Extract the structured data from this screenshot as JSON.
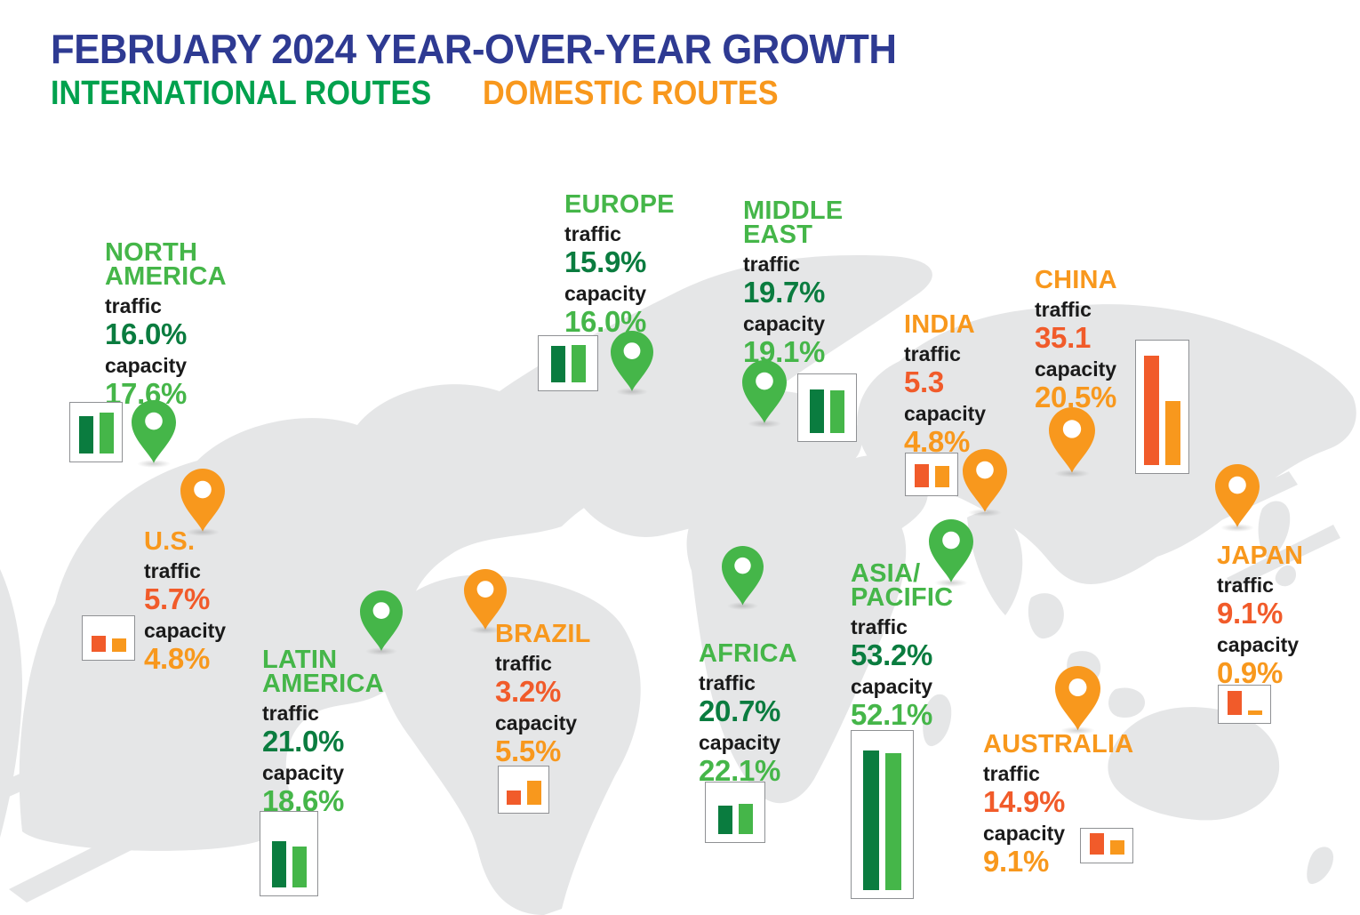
{
  "title": "FEBRUARY 2024 YEAR-OVER-YEAR GROWTH",
  "legend": {
    "international": "INTERNATIONAL ROUTES",
    "domestic": "DOMESTIC ROUTES"
  },
  "labels": {
    "traffic": "traffic",
    "capacity": "capacity"
  },
  "colors": {
    "navy": "#2E3A92",
    "green": "#45B649",
    "green_dark": "#0A7C3F",
    "green_legend": "#00A14D",
    "orange": "#F8981D",
    "orange_red": "#F15B2A",
    "text_black": "#1A1A1A",
    "map_gray": "#E5E6E7",
    "box_border": "#8F9194"
  },
  "regions": [
    {
      "name": "NORTH\nAMERICA",
      "route_type": "international",
      "traffic": "16.0%",
      "capacity": "17.6%",
      "traffic_value": 16.0,
      "capacity_value": 17.6
    },
    {
      "name": "U.S.",
      "route_type": "domestic",
      "traffic": "5.7%",
      "capacity": "4.8%",
      "traffic_value": 5.7,
      "capacity_value": 4.8
    },
    {
      "name": "LATIN\nAMERICA",
      "route_type": "international",
      "traffic": "21.0%",
      "capacity": "18.6%",
      "traffic_value": 21.0,
      "capacity_value": 18.6
    },
    {
      "name": "BRAZIL",
      "route_type": "domestic",
      "traffic": "3.2%",
      "capacity": "5.5%",
      "traffic_value": 3.2,
      "capacity_value": 5.5
    },
    {
      "name": "EUROPE",
      "route_type": "international",
      "traffic": "15.9%",
      "capacity": "16.0%",
      "traffic_value": 15.9,
      "capacity_value": 16.0
    },
    {
      "name": "MIDDLE\nEAST",
      "route_type": "international",
      "traffic": "19.7%",
      "capacity": "19.1%",
      "traffic_value": 19.7,
      "capacity_value": 19.1
    },
    {
      "name": "AFRICA",
      "route_type": "international",
      "traffic": "20.7%",
      "capacity": "22.1%",
      "traffic_value": 20.7,
      "capacity_value": 22.1
    },
    {
      "name": "INDIA",
      "route_type": "domestic",
      "traffic": "5.3",
      "capacity": "4.8%",
      "traffic_value": 5.3,
      "capacity_value": 4.8
    },
    {
      "name": "CHINA",
      "route_type": "domestic",
      "traffic": "35.1",
      "capacity": "20.5%",
      "traffic_value": 35.1,
      "capacity_value": 20.5
    },
    {
      "name": "ASIA/\nPACIFIC",
      "route_type": "international",
      "traffic": "53.2%",
      "capacity": "52.1%",
      "traffic_value": 53.2,
      "capacity_value": 52.1
    },
    {
      "name": "JAPAN",
      "route_type": "domestic",
      "traffic": "9.1%",
      "capacity": "0.9%",
      "traffic_value": 9.1,
      "capacity_value": 0.9
    },
    {
      "name": "AUSTRALIA",
      "route_type": "domestic",
      "traffic": "14.9%",
      "capacity": "9.1%",
      "traffic_value": 14.9,
      "capacity_value": 9.1
    }
  ],
  "chart_data": {
    "type": "bar",
    "title": "FEBRUARY 2024 YEAR-OVER-YEAR GROWTH",
    "legend": [
      "INTERNATIONAL ROUTES",
      "DOMESTIC ROUTES"
    ],
    "categories": [
      "NORTH AMERICA",
      "U.S.",
      "LATIN AMERICA",
      "BRAZIL",
      "EUROPE",
      "MIDDLE EAST",
      "AFRICA",
      "INDIA",
      "CHINA",
      "ASIA/PACIFIC",
      "JAPAN",
      "AUSTRALIA"
    ],
    "route_type": [
      "international",
      "domestic",
      "international",
      "domestic",
      "international",
      "international",
      "international",
      "domestic",
      "domestic",
      "international",
      "domestic",
      "domestic"
    ],
    "series": [
      {
        "name": "traffic (% YoY)",
        "values": [
          16.0,
          5.7,
          21.0,
          3.2,
          15.9,
          19.7,
          20.7,
          5.3,
          35.1,
          53.2,
          9.1,
          14.9
        ]
      },
      {
        "name": "capacity (% YoY)",
        "values": [
          17.6,
          4.8,
          18.6,
          5.5,
          16.0,
          19.1,
          22.1,
          4.8,
          20.5,
          52.1,
          0.9,
          9.1
        ]
      }
    ],
    "ylabel": "year-over-year growth (%)",
    "grid": false,
    "legend_position": "top-left"
  }
}
